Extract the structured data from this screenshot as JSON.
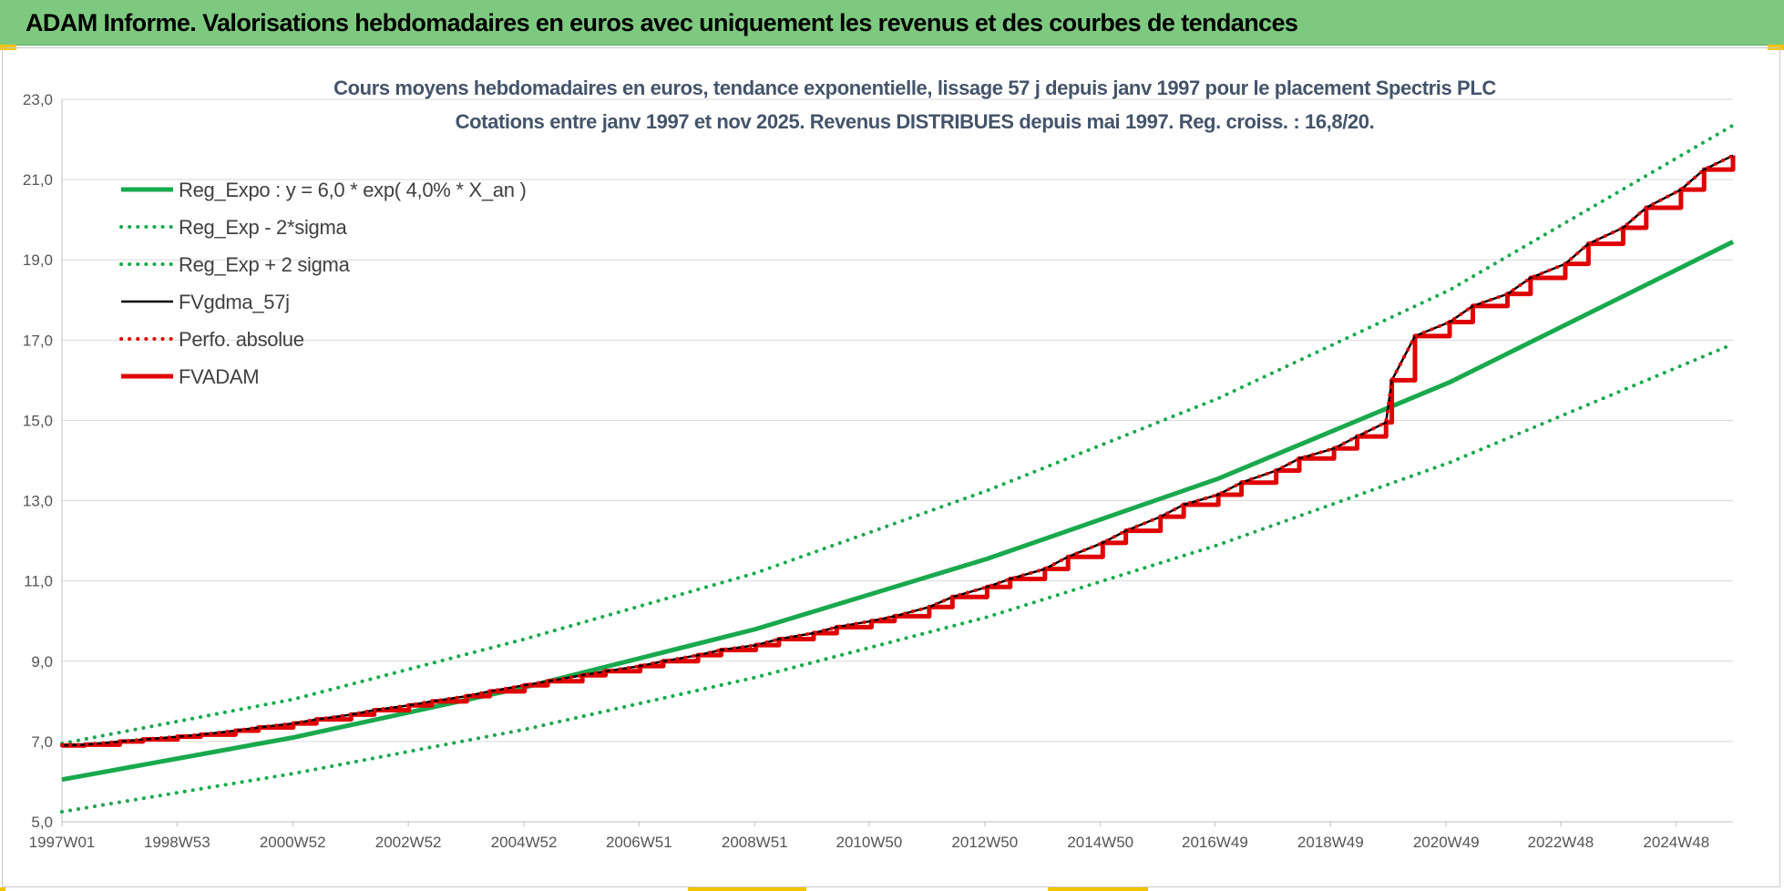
{
  "banner": {
    "title": "ADAM Informe. Valorisations hebdomadaires en euros avec uniquement les revenus et des courbes de tendances",
    "color": "#7dc97f"
  },
  "chart_data": {
    "type": "line",
    "title": "Cours moyens hebdomadaires en euros, tendance exponentielle, lissage 57 j depuis janv 1997 pour le placement Spectris PLC",
    "subtitle": "Cotations entre janv 1997 et nov 2025. Revenus DISTRIBUES depuis mai 1997. Reg. croiss. : 16,8/20.",
    "xlabel": "",
    "ylabel": "",
    "ylim": [
      5,
      23
    ],
    "yticks": [
      "5,0",
      "7,0",
      "9,0",
      "11,0",
      "13,0",
      "15,0",
      "17,0",
      "19,0",
      "21,0",
      "23,0"
    ],
    "xlim": [
      1997.0,
      2025.9
    ],
    "xticks": [
      {
        "label": "1997W01",
        "x": 1997.0
      },
      {
        "label": "1998W53",
        "x": 1998.99
      },
      {
        "label": "2000W52",
        "x": 2000.99
      },
      {
        "label": "2002W52",
        "x": 2002.99
      },
      {
        "label": "2004W52",
        "x": 2004.99
      },
      {
        "label": "2006W51",
        "x": 2006.98
      },
      {
        "label": "2008W51",
        "x": 2008.98
      },
      {
        "label": "2010W50",
        "x": 2010.96
      },
      {
        "label": "2012W50",
        "x": 2012.96
      },
      {
        "label": "2014W50",
        "x": 2014.96
      },
      {
        "label": "2016W49",
        "x": 2016.94
      },
      {
        "label": "2018W49",
        "x": 2018.94
      },
      {
        "label": "2020W49",
        "x": 2020.94
      },
      {
        "label": "2022W48",
        "x": 2022.92
      },
      {
        "label": "2024W48",
        "x": 2024.92
      }
    ],
    "grid": true,
    "legend_position": "top-left",
    "series": [
      {
        "name": "Reg_Expo : y = 6,0 * exp( 4,0% *  X_an )",
        "color": "#19a94d",
        "style": "solid-thick",
        "x": [
          1997.0,
          2001.0,
          2005.0,
          2009.0,
          2013.0,
          2017.0,
          2021.0,
          2025.9
        ],
        "values": [
          6.05,
          7.1,
          8.35,
          9.8,
          11.55,
          13.55,
          15.95,
          19.45
        ]
      },
      {
        "name": "Reg_Exp - 2*sigma",
        "color": "#19a94d",
        "style": "dotted",
        "x": [
          1997.0,
          2001.0,
          2005.0,
          2009.0,
          2013.0,
          2017.0,
          2021.0,
          2025.9
        ],
        "values": [
          5.25,
          6.2,
          7.3,
          8.6,
          10.1,
          11.9,
          13.95,
          16.9
        ]
      },
      {
        "name": "Reg_Exp + 2 sigma",
        "color": "#19a94d",
        "style": "dotted",
        "x": [
          1997.0,
          2001.0,
          2005.0,
          2009.0,
          2013.0,
          2017.0,
          2021.0,
          2025.9
        ],
        "values": [
          6.95,
          8.05,
          9.55,
          11.2,
          13.25,
          15.55,
          18.25,
          22.35
        ]
      },
      {
        "name": "FVgdma_57j",
        "color": "#000000",
        "style": "solid",
        "x": [
          1997.0,
          1997.4,
          1998.0,
          1998.4,
          1999.0,
          1999.4,
          2000.0,
          2000.4,
          2001.0,
          2001.4,
          2002.0,
          2002.4,
          2003.0,
          2003.4,
          2004.0,
          2004.4,
          2005.0,
          2005.4,
          2006.0,
          2006.4,
          2007.0,
          2007.4,
          2008.0,
          2008.4,
          2009.0,
          2009.4,
          2010.0,
          2010.4,
          2011.0,
          2011.4,
          2012.0,
          2012.4,
          2013.0,
          2013.4,
          2014.0,
          2014.4,
          2015.0,
          2015.4,
          2016.0,
          2016.4,
          2017.0,
          2017.4,
          2018.0,
          2018.4,
          2019.0,
          2019.4,
          2019.9,
          2020.0,
          2020.4,
          2021.0,
          2021.4,
          2022.0,
          2022.4,
          2023.0,
          2023.4,
          2024.0,
          2024.4,
          2025.0,
          2025.4,
          2025.9
        ],
        "values": [
          6.9,
          6.92,
          7.0,
          7.05,
          7.12,
          7.17,
          7.27,
          7.35,
          7.45,
          7.55,
          7.67,
          7.78,
          7.9,
          8.0,
          8.13,
          8.25,
          8.4,
          8.5,
          8.65,
          8.75,
          8.88,
          9.0,
          9.15,
          9.28,
          9.4,
          9.55,
          9.7,
          9.85,
          10.0,
          10.12,
          10.35,
          10.6,
          10.85,
          11.05,
          11.3,
          11.6,
          11.95,
          12.25,
          12.6,
          12.9,
          13.15,
          13.45,
          13.75,
          14.05,
          14.3,
          14.6,
          14.95,
          16.0,
          17.1,
          17.45,
          17.85,
          18.15,
          18.55,
          18.9,
          19.4,
          19.8,
          20.3,
          20.75,
          21.25,
          21.6
        ]
      },
      {
        "name": "Perfo. absolue",
        "color": "#e00000",
        "style": "dotted",
        "x": [
          1997.0,
          1997.4,
          1998.0,
          1998.4,
          1999.0,
          1999.4,
          2000.0,
          2000.4,
          2001.0,
          2001.4,
          2002.0,
          2002.4,
          2003.0,
          2003.4,
          2004.0,
          2004.4,
          2005.0,
          2005.4,
          2006.0,
          2006.4,
          2007.0,
          2007.4,
          2008.0,
          2008.4,
          2009.0,
          2009.4,
          2010.0,
          2010.4,
          2011.0,
          2011.4,
          2012.0,
          2012.4,
          2013.0,
          2013.4,
          2014.0,
          2014.4,
          2015.0,
          2015.4,
          2016.0,
          2016.4,
          2017.0,
          2017.4,
          2018.0,
          2018.4,
          2019.0,
          2019.4,
          2019.9,
          2020.0,
          2020.4,
          2021.0,
          2021.4,
          2022.0,
          2022.4,
          2023.0,
          2023.4,
          2024.0,
          2024.4,
          2025.0,
          2025.4,
          2025.9
        ],
        "values": [
          6.9,
          6.92,
          7.0,
          7.05,
          7.12,
          7.17,
          7.27,
          7.35,
          7.45,
          7.55,
          7.67,
          7.78,
          7.9,
          8.0,
          8.13,
          8.25,
          8.4,
          8.5,
          8.65,
          8.75,
          8.88,
          9.0,
          9.15,
          9.28,
          9.4,
          9.55,
          9.7,
          9.85,
          10.0,
          10.12,
          10.35,
          10.6,
          10.85,
          11.05,
          11.3,
          11.6,
          11.95,
          12.25,
          12.6,
          12.9,
          13.15,
          13.45,
          13.75,
          14.05,
          14.3,
          14.6,
          14.95,
          16.0,
          17.1,
          17.45,
          17.85,
          18.15,
          18.55,
          18.9,
          19.4,
          19.8,
          20.3,
          20.75,
          21.25,
          21.6
        ]
      },
      {
        "name": "FVADAM",
        "color": "#e00000",
        "style": "step-thick",
        "x": [
          1997.0,
          1997.4,
          1998.0,
          1998.4,
          1999.0,
          1999.4,
          2000.0,
          2000.4,
          2001.0,
          2001.4,
          2002.0,
          2002.4,
          2003.0,
          2003.4,
          2004.0,
          2004.4,
          2005.0,
          2005.4,
          2006.0,
          2006.4,
          2007.0,
          2007.4,
          2008.0,
          2008.4,
          2009.0,
          2009.4,
          2010.0,
          2010.4,
          2011.0,
          2011.4,
          2012.0,
          2012.4,
          2013.0,
          2013.4,
          2014.0,
          2014.4,
          2015.0,
          2015.4,
          2016.0,
          2016.4,
          2017.0,
          2017.4,
          2018.0,
          2018.4,
          2019.0,
          2019.4,
          2019.9,
          2020.0,
          2020.4,
          2021.0,
          2021.4,
          2022.0,
          2022.4,
          2023.0,
          2023.4,
          2024.0,
          2024.4,
          2025.0,
          2025.4,
          2025.9
        ],
        "values": [
          6.9,
          6.92,
          7.0,
          7.05,
          7.12,
          7.17,
          7.27,
          7.35,
          7.45,
          7.55,
          7.67,
          7.78,
          7.9,
          8.0,
          8.13,
          8.25,
          8.4,
          8.5,
          8.65,
          8.75,
          8.88,
          9.0,
          9.15,
          9.28,
          9.4,
          9.55,
          9.7,
          9.85,
          10.0,
          10.12,
          10.35,
          10.6,
          10.85,
          11.05,
          11.3,
          11.6,
          11.95,
          12.25,
          12.6,
          12.9,
          13.15,
          13.45,
          13.75,
          14.05,
          14.3,
          14.6,
          14.95,
          16.0,
          17.1,
          17.45,
          17.85,
          18.15,
          18.55,
          18.9,
          19.4,
          19.8,
          20.3,
          20.75,
          21.25,
          21.6
        ]
      }
    ]
  }
}
